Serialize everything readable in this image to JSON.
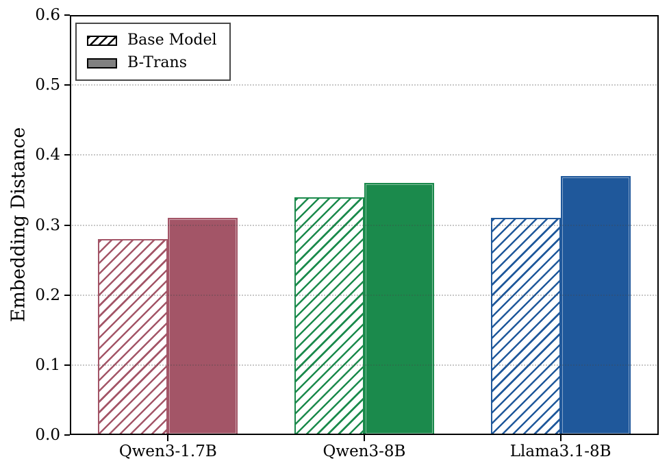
{
  "chart_data": {
    "type": "bar",
    "title": "",
    "xlabel": "",
    "ylabel": "Embedding Distance",
    "ylim": [
      0.0,
      0.6
    ],
    "ytick_labels": [
      "0.0",
      "0.1",
      "0.2",
      "0.3",
      "0.4",
      "0.5",
      "0.6"
    ],
    "grid": {
      "axis": "y",
      "style": "dotted",
      "values": [
        0.1,
        0.2,
        0.3,
        0.4,
        0.5
      ]
    },
    "categories": [
      "Qwen3-1.7B",
      "Qwen3-8B",
      "Llama3.1-8B"
    ],
    "series": [
      {
        "name": "Base Model",
        "style": "hatched",
        "values": [
          0.28,
          0.34,
          0.31
        ]
      },
      {
        "name": "B-Trans",
        "style": "solid",
        "values": [
          0.31,
          0.36,
          0.37
        ]
      }
    ],
    "category_colors": [
      "#a35567",
      "#1b8a4c",
      "#1f589b"
    ],
    "legend": {
      "position": "upper left",
      "items": [
        {
          "label": "Base Model",
          "swatch_style": "hatched",
          "swatch_color": "#000000"
        },
        {
          "label": "B-Trans",
          "swatch_style": "solid",
          "swatch_color": "#808080"
        }
      ]
    }
  }
}
